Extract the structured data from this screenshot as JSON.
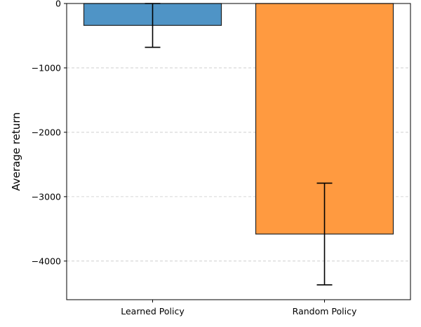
{
  "chart_data": {
    "type": "bar",
    "categories": [
      "Learned Policy",
      "Random Policy"
    ],
    "values": [
      -340,
      -3580
    ],
    "error": [
      340,
      790
    ],
    "colors": [
      "#4f94c6",
      "#ff9a40"
    ],
    "edge_color": "#222222",
    "xlabel": "",
    "ylabel": "Average return",
    "yticks": [
      0,
      -1000,
      -2000,
      -3000,
      -4000
    ],
    "ytick_labels": [
      "0",
      "−1000",
      "−2000",
      "−3000",
      "−4000"
    ],
    "ylim": [
      -4600,
      0
    ],
    "grid": "y-dashed"
  }
}
